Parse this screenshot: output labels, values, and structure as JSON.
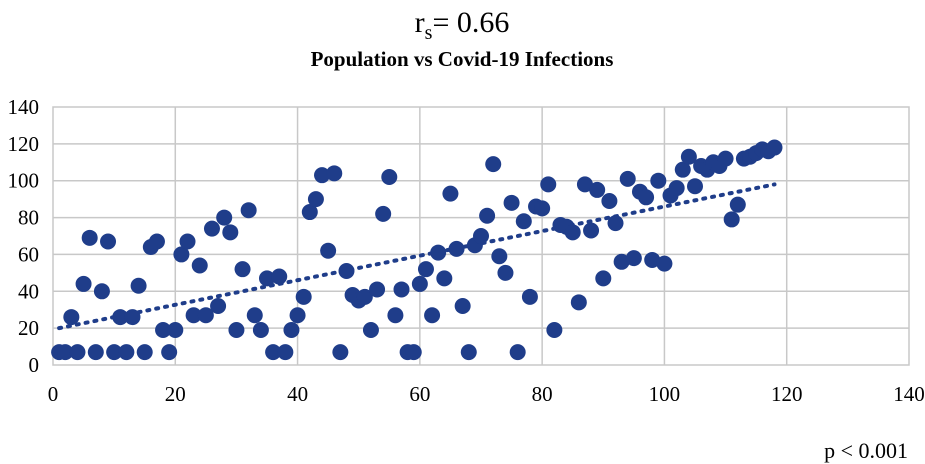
{
  "chart_data": {
    "type": "scatter",
    "stat_symbol": "r",
    "stat_subscript": "s",
    "stat_value": "= 0.66",
    "title": "Population vs Covid-19 Infections",
    "p_value": "p < 0.001",
    "xlim": [
      0,
      140
    ],
    "ylim": [
      0,
      140
    ],
    "x_ticks": [
      0,
      20,
      40,
      60,
      80,
      100,
      120,
      140
    ],
    "y_ticks": [
      0,
      20,
      40,
      60,
      80,
      100,
      120,
      140
    ],
    "grid": true,
    "point_color": "#1f3d8a",
    "trendline": {
      "style": "dotted",
      "x": [
        1,
        118
      ],
      "y": [
        20,
        98
      ]
    },
    "points": [
      [
        1,
        7
      ],
      [
        2,
        7
      ],
      [
        3,
        26
      ],
      [
        4,
        7
      ],
      [
        5,
        44
      ],
      [
        6,
        69
      ],
      [
        7,
        7
      ],
      [
        8,
        40
      ],
      [
        9,
        67
      ],
      [
        10,
        7
      ],
      [
        11,
        26
      ],
      [
        12,
        7
      ],
      [
        13,
        26
      ],
      [
        14,
        43
      ],
      [
        15,
        7
      ],
      [
        16,
        64
      ],
      [
        17,
        67
      ],
      [
        18,
        19
      ],
      [
        19,
        7
      ],
      [
        20,
        19
      ],
      [
        21,
        60
      ],
      [
        22,
        67
      ],
      [
        23,
        27
      ],
      [
        24,
        54
      ],
      [
        25,
        27
      ],
      [
        26,
        74
      ],
      [
        27,
        32
      ],
      [
        28,
        80
      ],
      [
        29,
        72
      ],
      [
        30,
        19
      ],
      [
        31,
        52
      ],
      [
        32,
        84
      ],
      [
        33,
        27
      ],
      [
        34,
        19
      ],
      [
        35,
        47
      ],
      [
        36,
        7
      ],
      [
        37,
        48
      ],
      [
        38,
        7
      ],
      [
        39,
        19
      ],
      [
        40,
        27
      ],
      [
        41,
        37
      ],
      [
        42,
        83
      ],
      [
        43,
        90
      ],
      [
        44,
        103
      ],
      [
        45,
        62
      ],
      [
        46,
        104
      ],
      [
        47,
        7
      ],
      [
        48,
        51
      ],
      [
        49,
        38
      ],
      [
        50,
        35
      ],
      [
        51,
        37
      ],
      [
        52,
        19
      ],
      [
        53,
        41
      ],
      [
        54,
        82
      ],
      [
        55,
        102
      ],
      [
        56,
        27
      ],
      [
        57,
        41
      ],
      [
        58,
        7
      ],
      [
        59,
        7
      ],
      [
        60,
        44
      ],
      [
        61,
        52
      ],
      [
        62,
        27
      ],
      [
        63,
        61
      ],
      [
        64,
        47
      ],
      [
        65,
        93
      ],
      [
        66,
        63
      ],
      [
        67,
        32
      ],
      [
        68,
        7
      ],
      [
        69,
        65
      ],
      [
        70,
        70
      ],
      [
        71,
        81
      ],
      [
        72,
        109
      ],
      [
        73,
        59
      ],
      [
        74,
        50
      ],
      [
        75,
        88
      ],
      [
        76,
        7
      ],
      [
        77,
        78
      ],
      [
        78,
        37
      ],
      [
        79,
        86
      ],
      [
        80,
        85
      ],
      [
        81,
        98
      ],
      [
        82,
        19
      ],
      [
        83,
        76
      ],
      [
        84,
        75
      ],
      [
        85,
        72
      ],
      [
        86,
        34
      ],
      [
        87,
        98
      ],
      [
        88,
        73
      ],
      [
        89,
        95
      ],
      [
        90,
        47
      ],
      [
        91,
        89
      ],
      [
        92,
        77
      ],
      [
        93,
        56
      ],
      [
        94,
        101
      ],
      [
        95,
        58
      ],
      [
        96,
        94
      ],
      [
        97,
        91
      ],
      [
        98,
        57
      ],
      [
        99,
        100
      ],
      [
        100,
        55
      ],
      [
        101,
        92
      ],
      [
        102,
        96
      ],
      [
        103,
        106
      ],
      [
        104,
        113
      ],
      [
        105,
        97
      ],
      [
        106,
        108
      ],
      [
        107,
        106
      ],
      [
        108,
        110
      ],
      [
        109,
        108
      ],
      [
        110,
        112
      ],
      [
        111,
        79
      ],
      [
        112,
        87
      ],
      [
        113,
        112
      ],
      [
        114,
        113
      ],
      [
        115,
        115
      ],
      [
        116,
        117
      ],
      [
        117,
        116
      ],
      [
        118,
        118
      ]
    ]
  }
}
